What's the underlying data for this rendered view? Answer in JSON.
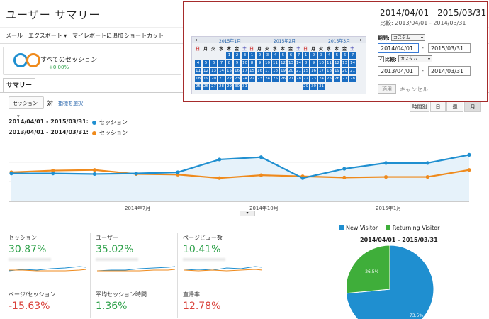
{
  "title": "ユーザー サマリー",
  "toolbar": {
    "email": "メール",
    "export": "エクスポート",
    "add_dashboard": "マイレポートに追加",
    "shortcut": "ショートカット"
  },
  "segment": {
    "name": "すべてのセッション",
    "pct": "+0.00%",
    "ring1": "#1f8fd0",
    "ring2": "#ef8a1c"
  },
  "tab": "サマリー",
  "metric_select": "セッション",
  "vs": "対",
  "pick_metric": "指標を選択",
  "legend": [
    {
      "range": "2014/04/01 - 2015/03/31:",
      "metric": "セッション",
      "color": "#1f8fd0"
    },
    {
      "range": "2013/04/01 - 2014/03/31:",
      "metric": "セッション",
      "color": "#ef8a1c"
    }
  ],
  "view_buttons": [
    "時間別",
    "日",
    "週",
    "月"
  ],
  "chart_data": {
    "type": "line",
    "x": [
      "2014-04",
      "2014-05",
      "2014-06",
      "2014-07",
      "2014-08",
      "2014-09",
      "2014-10",
      "2014-11",
      "2014-12",
      "2015-01",
      "2015-02",
      "2015-03"
    ],
    "x_tick_labels": [
      "2014年7月",
      "2014年10月",
      "2015年1月"
    ],
    "series": [
      {
        "values": [
          48,
          48,
          47,
          48,
          50,
          72,
          76,
          40,
          56,
          66,
          66,
          80
        ],
        "color": "#1f8fd0"
      },
      {
        "values": [
          50,
          53,
          54,
          47,
          46,
          40,
          45,
          43,
          41,
          42,
          42,
          54
        ],
        "color": "#ef8a1c"
      }
    ],
    "ylim": [
      0,
      100
    ],
    "fill": "#e6f2fa"
  },
  "metrics": [
    {
      "label": "セッション",
      "value": "30.87%",
      "sign": "pos"
    },
    {
      "label": "ユーザー",
      "value": "35.02%",
      "sign": "pos"
    },
    {
      "label": "ページビュー数",
      "value": "10.41%",
      "sign": "pos"
    },
    {
      "label": "ページ/セッション",
      "value": "-15.63%",
      "sign": "neg"
    },
    {
      "label": "平均セッション時間",
      "value": "1.36%",
      "sign": "pos"
    },
    {
      "label": "直帰率",
      "value": "12.78%",
      "sign": "pos_red"
    }
  ],
  "pie": {
    "legend": [
      {
        "label": "New Visitor",
        "color": "#1f8fd0"
      },
      {
        "label": "Returning Visitor",
        "color": "#3fae3a"
      }
    ],
    "range": "2014/04/01 - 2015/03/31",
    "slices": [
      {
        "label": "73.5%",
        "value": 73.5,
        "color": "#1f8fd0"
      },
      {
        "label": "26.5%",
        "value": 26.5,
        "color": "#3fae3a"
      }
    ]
  },
  "picker": {
    "range_main": "2014/04/01 - 2015/03/31",
    "range_cmp": "比較: 2013/04/01 - 2014/03/31",
    "months": [
      "2015年1月",
      "2015年2月",
      "2015年3月"
    ],
    "dow": [
      "日",
      "月",
      "火",
      "水",
      "木",
      "金",
      "土"
    ],
    "period_label": "期間:",
    "period_select": "カスタム",
    "start": "2014/04/01",
    "end": "2015/03/31",
    "compare_label": "比較:",
    "compare_select": "カスタム",
    "cmp_start": "2013/04/01",
    "cmp_end": "2014/03/31",
    "apply": "適用",
    "cancel": "キャンセル",
    "dash": "-"
  }
}
